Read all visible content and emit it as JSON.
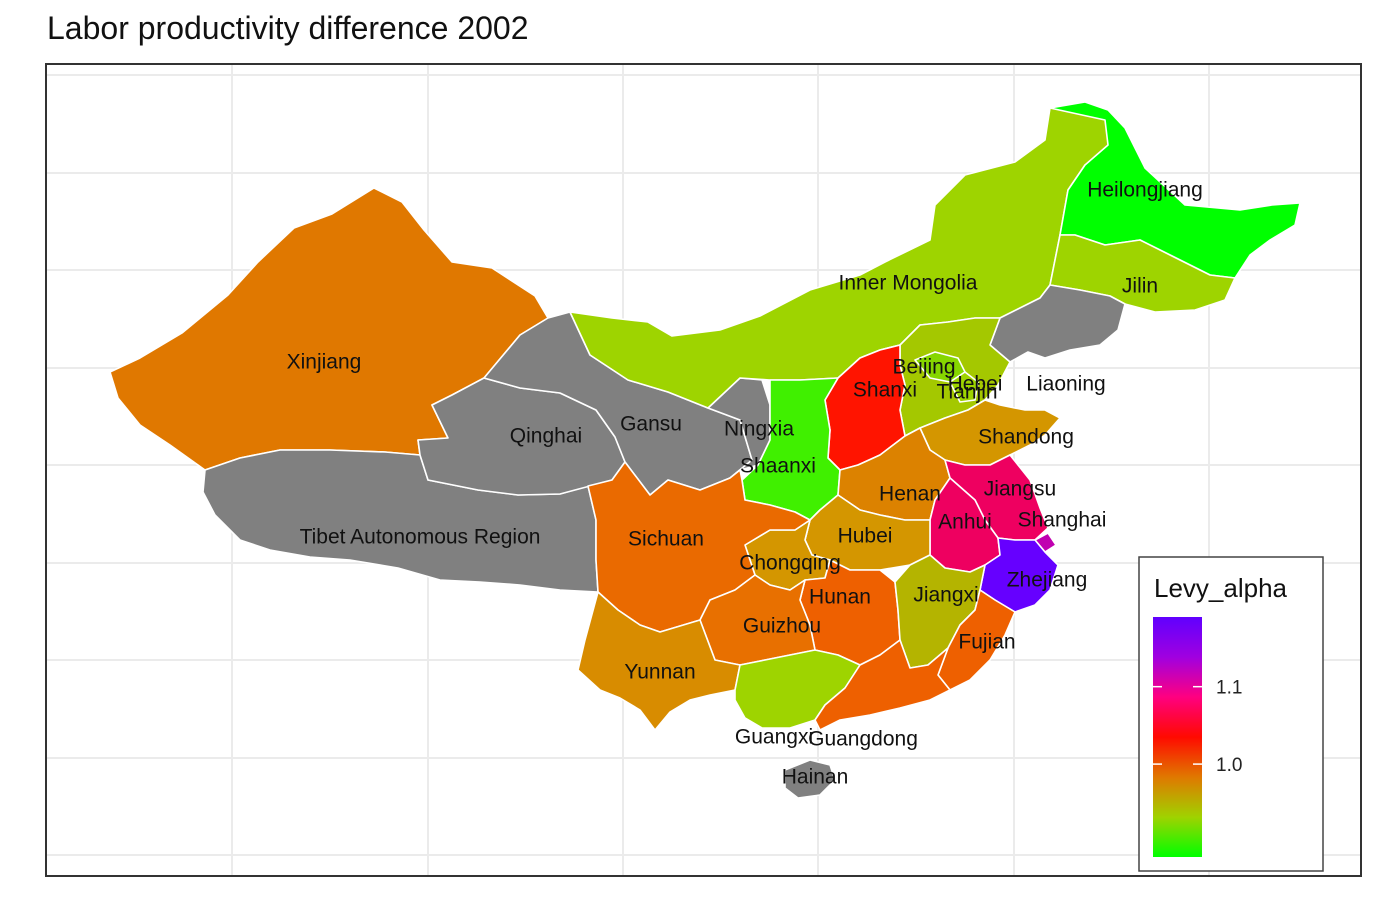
{
  "title": "Labor productivity difference 2002",
  "legend": {
    "title": "Levy_alpha",
    "ticks": [
      {
        "value": 1.1,
        "label": "1.1"
      },
      {
        "value": 1.0,
        "label": "1.0"
      }
    ],
    "range": [
      0.88,
      1.19
    ],
    "gradient_colors": [
      "#00ff00",
      "#a0d200",
      "#e07800",
      "#ff0a00",
      "#ff0080",
      "#a000e0",
      "#6000ff"
    ]
  },
  "colors": {
    "missing": "#808080",
    "panel_border": "#333333",
    "grid": "#ebebeb"
  },
  "chart_data": {
    "type": "map",
    "title": "Labor productivity difference 2002",
    "fill_variable": "Levy_alpha",
    "regions": [
      {
        "name": "Heilongjiang",
        "levy_alpha": 0.89,
        "color": "#00ff00"
      },
      {
        "name": "Jilin",
        "levy_alpha": 0.95,
        "color": "#9ed400"
      },
      {
        "name": "Liaoning",
        "levy_alpha": null,
        "color": "#808080"
      },
      {
        "name": "Inner Mongolia",
        "levy_alpha": 0.95,
        "color": "#9ed400"
      },
      {
        "name": "Beijing",
        "levy_alpha": 0.94,
        "color": "#86d600"
      },
      {
        "name": "Tianjin",
        "levy_alpha": 0.95,
        "color": "#9ed400"
      },
      {
        "name": "Hebei",
        "levy_alpha": 0.97,
        "color": "#a4c800"
      },
      {
        "name": "Shanxi",
        "levy_alpha": 1.06,
        "color": "#ff1400"
      },
      {
        "name": "Shandong",
        "levy_alpha": 1.0,
        "color": "#d49600"
      },
      {
        "name": "Jiangsu",
        "levy_alpha": 1.12,
        "color": "#ee0060"
      },
      {
        "name": "Shanghai",
        "levy_alpha": 1.15,
        "color": "#c000b0"
      },
      {
        "name": "Anhui",
        "levy_alpha": 1.12,
        "color": "#ee0060"
      },
      {
        "name": "Zhejiang",
        "levy_alpha": 1.19,
        "color": "#6600ff"
      },
      {
        "name": "Fujian",
        "levy_alpha": 1.03,
        "color": "#ee6000"
      },
      {
        "name": "Jiangxi",
        "levy_alpha": 0.98,
        "color": "#b4b400"
      },
      {
        "name": "Henan",
        "levy_alpha": 1.01,
        "color": "#dc8200"
      },
      {
        "name": "Hubei",
        "levy_alpha": 1.0,
        "color": "#d49600"
      },
      {
        "name": "Hunan",
        "levy_alpha": 1.03,
        "color": "#ee6000"
      },
      {
        "name": "Guangdong",
        "levy_alpha": 1.03,
        "color": "#ee6000"
      },
      {
        "name": "Guangxi",
        "levy_alpha": 0.95,
        "color": "#9ed400"
      },
      {
        "name": "Hainan",
        "levy_alpha": null,
        "color": "#808080"
      },
      {
        "name": "Chongqing",
        "levy_alpha": 1.0,
        "color": "#d49600"
      },
      {
        "name": "Sichuan",
        "levy_alpha": 1.02,
        "color": "#ea6a00"
      },
      {
        "name": "Guizhou",
        "levy_alpha": 1.02,
        "color": "#e87000"
      },
      {
        "name": "Yunnan",
        "levy_alpha": 1.0,
        "color": "#d88c00"
      },
      {
        "name": "Shaanxi",
        "levy_alpha": 0.9,
        "color": "#40f000"
      },
      {
        "name": "Ningxia",
        "levy_alpha": null,
        "color": "#808080"
      },
      {
        "name": "Gansu",
        "levy_alpha": null,
        "color": "#808080"
      },
      {
        "name": "Qinghai",
        "levy_alpha": null,
        "color": "#808080"
      },
      {
        "name": "Xinjiang",
        "levy_alpha": 1.01,
        "color": "#e07800"
      },
      {
        "name": "Tibet Autonomous Region",
        "levy_alpha": null,
        "color": "#808080"
      }
    ]
  }
}
